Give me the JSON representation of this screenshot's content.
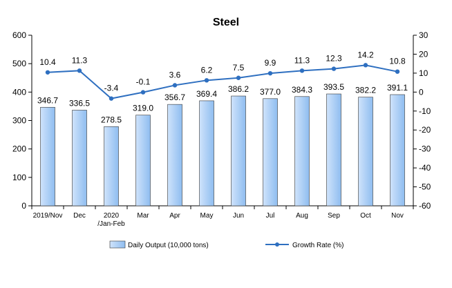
{
  "chart_data": {
    "type": "bar",
    "title": "Steel",
    "categories": [
      [
        "2019/Nov"
      ],
      [
        "Dec"
      ],
      [
        "2020",
        "/Jan-Feb"
      ],
      [
        "Mar"
      ],
      [
        "Apr"
      ],
      [
        "May"
      ],
      [
        "Jun"
      ],
      [
        "Jul"
      ],
      [
        "Aug"
      ],
      [
        "Sep"
      ],
      [
        "Oct"
      ],
      [
        "Nov"
      ]
    ],
    "series": [
      {
        "name": "Daily Output (10,000 tons)",
        "type": "bar",
        "axis": "left",
        "values": [
          346.7,
          336.5,
          278.5,
          319.0,
          356.7,
          369.4,
          386.2,
          377.0,
          384.3,
          393.5,
          382.2,
          391.1
        ],
        "labels": [
          "346.7",
          "336.5",
          "278.5",
          "319.0",
          "356.7",
          "369.4",
          "386.2",
          "377.0",
          "384.3",
          "393.5",
          "382.2",
          "391.1"
        ]
      },
      {
        "name": "Growth Rate (%)",
        "type": "line",
        "axis": "right",
        "values": [
          10.4,
          11.3,
          -3.4,
          -0.1,
          3.6,
          6.2,
          7.5,
          9.9,
          11.3,
          12.3,
          14.2,
          10.8
        ],
        "labels": [
          "10.4",
          "11.3",
          "-3.4",
          "-0.1",
          "3.6",
          "6.2",
          "7.5",
          "9.9",
          "11.3",
          "12.3",
          "14.2",
          "10.8"
        ]
      }
    ],
    "y_left": {
      "min": 0,
      "max": 600,
      "ticks": [
        0,
        100,
        200,
        300,
        400,
        500,
        600
      ]
    },
    "y_right": {
      "min": -60,
      "max": 30,
      "ticks": [
        -60,
        -50,
        -40,
        -30,
        -20,
        -10,
        0,
        10,
        20,
        30
      ]
    },
    "legend_position": "bottom",
    "grid": false,
    "colors": {
      "bar_fill_light": "#cfe3fb",
      "bar_fill_dark": "#8fbdf0",
      "bar_stroke": "#333333",
      "line": "#2e6fc0",
      "axis": "#000000"
    }
  }
}
